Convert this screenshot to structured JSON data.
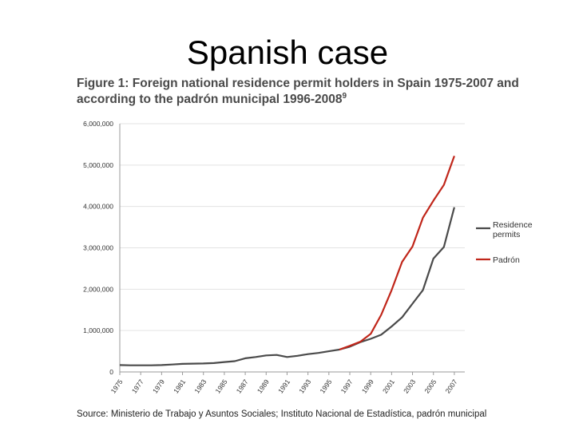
{
  "slide": {
    "title": "Spanish case"
  },
  "figure": {
    "caption_line1": "Figure 1: Foreign national residence permit holders in Spain 1975-2007 and",
    "caption_line2": "according to the padrón municipal 1996-2008",
    "caption_footnote": "9",
    "source": "Source: Ministerio de Trabajo y Asuntos Sociales; Instituto Nacional de Estadística, padrón municipal"
  },
  "chart_data": {
    "type": "line",
    "title": "Figure 1: Foreign national residence permit holders in Spain 1975-2007 and according to the padrón municipal 1996-2008",
    "xlabel": "",
    "ylabel": "",
    "xlim": [
      1975,
      2008
    ],
    "ylim": [
      0,
      6000000
    ],
    "x_ticks": [
      "1975",
      "1977",
      "1979",
      "1981",
      "1983",
      "1985",
      "1987",
      "1989",
      "1991",
      "1993",
      "1995",
      "1997",
      "1999",
      "2001",
      "2003",
      "2005",
      "2007"
    ],
    "y_ticks": [
      "0",
      "1,000,000",
      "2,000,000",
      "3,000,000",
      "4,000,000",
      "5,000,000",
      "6,000,000"
    ],
    "y_tick_values": [
      0,
      1000000,
      2000000,
      3000000,
      4000000,
      5000000,
      6000000
    ],
    "grid": "horizontal",
    "legend_position": "right",
    "series": [
      {
        "name": "Residence permits",
        "color": "#4a4a4a",
        "x": [
          1975,
          1976,
          1977,
          1978,
          1979,
          1980,
          1981,
          1982,
          1983,
          1984,
          1985,
          1986,
          1987,
          1988,
          1989,
          1990,
          1991,
          1992,
          1993,
          1994,
          1995,
          1996,
          1997,
          1998,
          1999,
          2000,
          2001,
          2002,
          2003,
          2004,
          2005,
          2006,
          2007,
          2008
        ],
        "values": [
          165000,
          160000,
          160000,
          160000,
          165000,
          180000,
          195000,
          200000,
          205000,
          215000,
          240000,
          260000,
          330000,
          360000,
          400000,
          410000,
          360000,
          390000,
          430000,
          460000,
          500000,
          540000,
          610000,
          720000,
          800000,
          900000,
          1100000,
          1320000,
          1650000,
          1980000,
          2740000,
          3020000,
          3980000,
          null
        ]
      },
      {
        "name": "Padrón",
        "color": "#c0261a",
        "x": [
          1996,
          1997,
          1998,
          1999,
          2000,
          2001,
          2002,
          2003,
          2004,
          2005,
          2006,
          2007,
          2008
        ],
        "values": [
          540000,
          630000,
          730000,
          920000,
          1380000,
          1980000,
          2660000,
          3030000,
          3730000,
          4140000,
          4520000,
          5220000,
          null
        ]
      }
    ]
  }
}
